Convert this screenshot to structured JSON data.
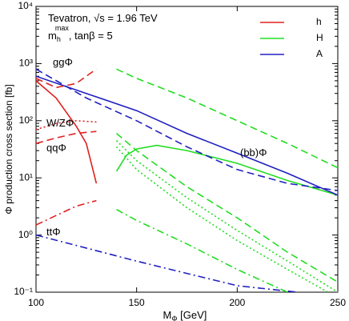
{
  "chart_data": {
    "type": "line",
    "annotations": [
      {
        "text": "Tevatron, √s = 1.96 TeV"
      },
      {
        "text": "m",
        "sub": "h",
        "sup": "max",
        "rest": ", tanβ = 5"
      },
      {
        "text": "ggΦ"
      },
      {
        "text": "W/ZΦ"
      },
      {
        "text": "qqΦ"
      },
      {
        "text": "ttΦ"
      },
      {
        "text": "(bb)Φ"
      }
    ],
    "x_label": {
      "text": "M",
      "sub": "Φ",
      "rest": " [GeV]"
    },
    "y_label": "Φ production cross section [fb]",
    "xlim": [
      100,
      250
    ],
    "xticks": [
      100,
      150,
      200,
      250
    ],
    "ylim": [
      0.1,
      10000
    ],
    "log_y": true,
    "yticks": [
      {
        "value": 0.1,
        "label": "10⁻¹"
      },
      {
        "value": 1,
        "label": "10⁰"
      },
      {
        "value": 10,
        "label": "10¹"
      },
      {
        "value": 100,
        "label": "10²"
      },
      {
        "value": 1000,
        "label": "10³"
      },
      {
        "value": 10000,
        "label": "10⁴"
      }
    ],
    "legend": "top-right",
    "series": [
      {
        "name": "h",
        "color": "#e02020",
        "style": "solid",
        "x": [
          100,
          110,
          120,
          125,
          130
        ],
        "values": [
          500,
          250,
          80,
          40,
          8
        ]
      },
      {
        "name": "H",
        "color": "#22dd22",
        "style": "solid",
        "x": [
          140,
          145,
          150,
          160,
          175,
          200,
          225,
          250
        ],
        "values": [
          13,
          25,
          32,
          37,
          30,
          18,
          9,
          5
        ]
      },
      {
        "name": "A",
        "color": "#2020c0",
        "style": "solid",
        "x": [
          100,
          125,
          150,
          175,
          200,
          225,
          250
        ],
        "values": [
          600,
          300,
          150,
          60,
          27,
          12,
          5
        ]
      },
      {
        "color": "#e02020",
        "style": "dashed",
        "x": [
          100,
          110,
          120,
          125,
          130
        ],
        "values": [
          550,
          380,
          450,
          600,
          800
        ]
      },
      {
        "color": "#e02020",
        "style": "dotted",
        "x": [
          100,
          110,
          120,
          130
        ],
        "values": [
          70,
          90,
          100,
          95
        ]
      },
      {
        "color": "#e02020",
        "style": "dashed",
        "x": [
          100,
          110,
          120,
          130
        ],
        "values": [
          40,
          50,
          60,
          65
        ]
      },
      {
        "color": "#e02020",
        "style": "dashdot",
        "x": [
          100,
          110,
          120,
          130
        ],
        "values": [
          1.5,
          2.2,
          3.2,
          4
        ]
      },
      {
        "color": "#2020c0",
        "style": "dashed",
        "x": [
          100,
          125,
          150,
          175,
          200,
          225,
          250
        ],
        "values": [
          800,
          250,
          100,
          35,
          14,
          8,
          6
        ]
      },
      {
        "color": "#2020c0",
        "style": "dashdot",
        "x": [
          100,
          150,
          200,
          230
        ],
        "values": [
          1,
          0.35,
          0.13,
          0.1
        ]
      },
      {
        "color": "#22dd22",
        "style": "dashed",
        "x": [
          140,
          150,
          175,
          200,
          225,
          250
        ],
        "values": [
          800,
          550,
          250,
          100,
          40,
          15
        ]
      },
      {
        "color": "#22dd22",
        "style": "dashed",
        "x": [
          140,
          150,
          175,
          200,
          225,
          250
        ],
        "values": [
          60,
          30,
          7,
          2,
          0.5,
          0.15
        ]
      },
      {
        "color": "#22dd22",
        "style": "dotted",
        "x": [
          140,
          150,
          175,
          200,
          225,
          250
        ],
        "values": [
          45,
          20,
          4.5,
          1.2,
          0.35,
          0.1
        ]
      },
      {
        "color": "#22dd22",
        "style": "dotted",
        "x": [
          140,
          150,
          175,
          200,
          225,
          250
        ],
        "values": [
          35,
          14,
          3,
          0.8,
          0.25,
          0.08
        ]
      },
      {
        "color": "#22dd22",
        "style": "dashdot",
        "x": [
          140,
          150,
          175,
          200,
          225
        ],
        "values": [
          2.8,
          1.8,
          0.7,
          0.25,
          0.1
        ]
      }
    ]
  }
}
